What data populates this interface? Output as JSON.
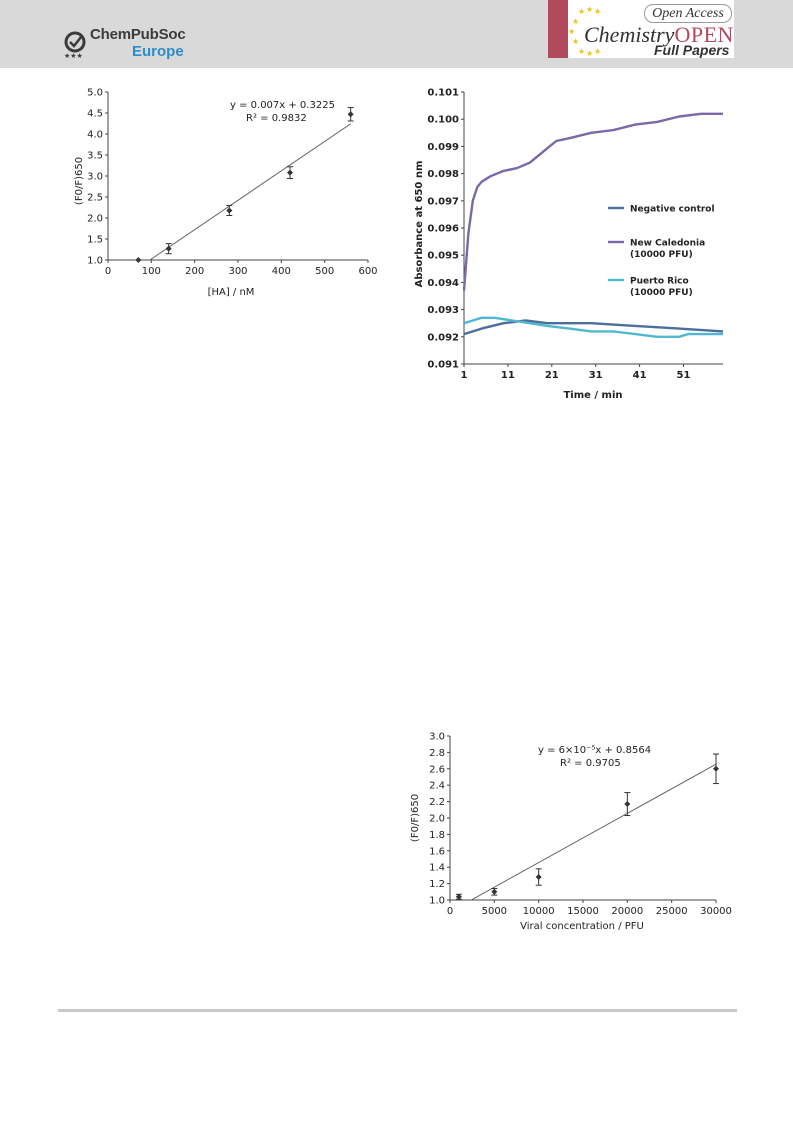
{
  "header": {
    "publisher_name": "ChemPubSoc",
    "publisher_region": "Europe",
    "open_access": "Open Access",
    "journal_prefix": "Chemistry",
    "journal_suffix": "OPEN",
    "section": "Full Papers"
  },
  "chart_data": [
    {
      "type": "scatter",
      "title": "",
      "xlabel": "[HA] / nM",
      "ylabel": "(F0/F)650",
      "xlim": [
        0,
        600
      ],
      "ylim": [
        1.0,
        5.0
      ],
      "x_ticks": [
        "0",
        "100",
        "200",
        "300",
        "400",
        "500",
        "600"
      ],
      "y_ticks": [
        "1.0",
        "1.5",
        "2.0",
        "2.5",
        "3.0",
        "3.5",
        "4.0",
        "4.5",
        "5.0"
      ],
      "points": [
        {
          "x": 70,
          "y": 1.0,
          "err": 0.0
        },
        {
          "x": 140,
          "y": 1.27,
          "err": 0.12
        },
        {
          "x": 280,
          "y": 2.18,
          "err": 0.12
        },
        {
          "x": 420,
          "y": 3.08,
          "err": 0.14
        },
        {
          "x": 560,
          "y": 4.47,
          "err": 0.16
        }
      ],
      "fit": {
        "slope": 0.007,
        "intercept": 0.3225,
        "x_range": [
          96,
          560
        ]
      },
      "annotations": {
        "equation": "y = 0.007x + 0.3225",
        "r2": "R² = 0.9832"
      }
    },
    {
      "type": "line",
      "title": "",
      "xlabel": "Time / min",
      "ylabel": "Absorbance at 650 nm",
      "xlim": [
        1,
        60
      ],
      "ylim": [
        0.091,
        0.101
      ],
      "x_ticks": [
        "1",
        "11",
        "21",
        "31",
        "41",
        "51"
      ],
      "y_ticks": [
        "0.091",
        "0.092",
        "0.093",
        "0.094",
        "0.095",
        "0.096",
        "0.097",
        "0.098",
        "0.099",
        "0.100",
        "0.101"
      ],
      "series": [
        {
          "name": "Negative control",
          "color": "#4a6f9c",
          "points": [
            [
              1,
              0.0921
            ],
            [
              5,
              0.0923
            ],
            [
              10,
              0.0925
            ],
            [
              15,
              0.0926
            ],
            [
              20,
              0.0925
            ],
            [
              25,
              0.0925
            ],
            [
              30,
              0.0925
            ],
            [
              40,
              0.0924
            ],
            [
              50,
              0.0923
            ],
            [
              60,
              0.0922
            ]
          ]
        },
        {
          "name": "New Caledonia",
          "subname": "(10000 PFU)",
          "color": "#7b68a6",
          "points": [
            [
              1,
              0.0937
            ],
            [
              2,
              0.0958
            ],
            [
              3,
              0.097
            ],
            [
              4,
              0.0975
            ],
            [
              5,
              0.0977
            ],
            [
              7,
              0.0979
            ],
            [
              10,
              0.0981
            ],
            [
              13,
              0.0982
            ],
            [
              16,
              0.0984
            ],
            [
              19,
              0.0988
            ],
            [
              22,
              0.0992
            ],
            [
              25,
              0.0993
            ],
            [
              30,
              0.0995
            ],
            [
              35,
              0.0996
            ],
            [
              40,
              0.0998
            ],
            [
              45,
              0.0999
            ],
            [
              50,
              0.1001
            ],
            [
              55,
              0.1002
            ],
            [
              60,
              0.1002
            ]
          ]
        },
        {
          "name": "Puerto Rico",
          "subname": "(10000 PFU)",
          "color": "#4fb8cf",
          "points": [
            [
              1,
              0.0925
            ],
            [
              3,
              0.0926
            ],
            [
              5,
              0.0927
            ],
            [
              8,
              0.0927
            ],
            [
              12,
              0.0926
            ],
            [
              16,
              0.0925
            ],
            [
              20,
              0.0924
            ],
            [
              25,
              0.0923
            ],
            [
              30,
              0.0922
            ],
            [
              35,
              0.0922
            ],
            [
              40,
              0.0921
            ],
            [
              45,
              0.092
            ],
            [
              50,
              0.092
            ],
            [
              52,
              0.0921
            ],
            [
              55,
              0.0921
            ],
            [
              60,
              0.0921
            ]
          ]
        }
      ]
    },
    {
      "type": "scatter",
      "title": "",
      "xlabel": "Viral concentration / PFU",
      "ylabel": "(F0/F)650",
      "xlim": [
        0,
        30000
      ],
      "ylim": [
        1.0,
        3.0
      ],
      "x_ticks": [
        "0",
        "5000",
        "10000",
        "15000",
        "20000",
        "25000",
        "30000"
      ],
      "y_ticks": [
        "1.0",
        "1.2",
        "1.4",
        "1.6",
        "1.8",
        "2.0",
        "2.2",
        "2.4",
        "2.6",
        "2.8",
        "3.0"
      ],
      "points": [
        {
          "x": 1000,
          "y": 1.04,
          "err": 0.03
        },
        {
          "x": 5000,
          "y": 1.1,
          "err": 0.04
        },
        {
          "x": 10000,
          "y": 1.28,
          "err": 0.1
        },
        {
          "x": 20000,
          "y": 2.17,
          "err": 0.14
        },
        {
          "x": 30000,
          "y": 2.6,
          "err": 0.18
        }
      ],
      "fit": {
        "slope": 6e-05,
        "intercept": 0.8564,
        "x_range": [
          2393,
          30000
        ]
      },
      "annotations": {
        "equation": "y = 6×10⁻⁵x + 0.8564",
        "r2": "R² = 0.9705"
      }
    }
  ]
}
